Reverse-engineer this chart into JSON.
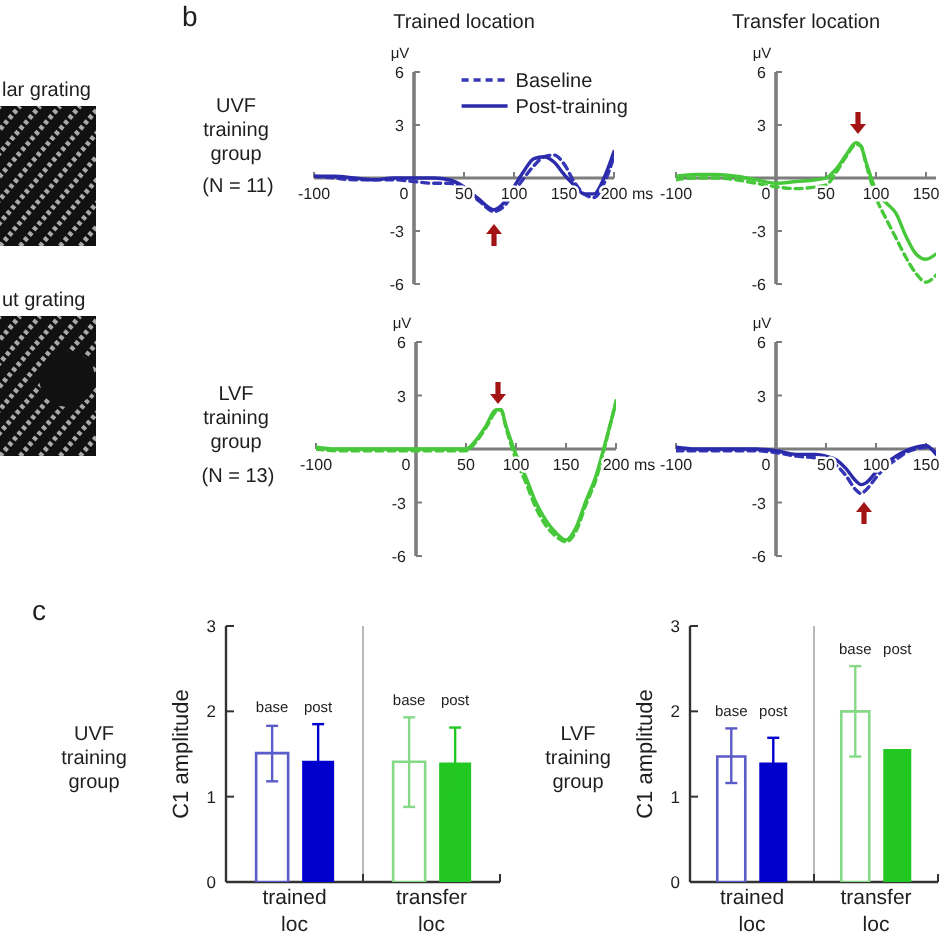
{
  "chart_data": [
    {
      "type": "other",
      "annotations": [
        "lar grating",
        "ut grating"
      ]
    },
    {
      "type": "line",
      "title": "Trained location",
      "xlabel": "ms",
      "ylabel": "μV",
      "annotations": [
        "b",
        "UVF training group",
        "(N = 11)"
      ],
      "legend": "top right",
      "x": [
        -100,
        -80,
        -60,
        -40,
        -20,
        0,
        20,
        35,
        50,
        65,
        80,
        90,
        100,
        110,
        120,
        130,
        140,
        150,
        160,
        170,
        180,
        190,
        200
      ],
      "series": [
        {
          "name": "Baseline",
          "color": "#3535b8",
          "line_style": "dashed",
          "values": [
            0.1,
            0,
            -0.1,
            -0.1,
            -0.1,
            -0.2,
            -0.3,
            -0.3,
            -0.6,
            -1.3,
            -1.9,
            -1.6,
            -0.8,
            0,
            0.7,
            1.2,
            1.3,
            0.8,
            -0.2,
            -0.9,
            -1.1,
            -0.3,
            1.2
          ]
        },
        {
          "name": "Post-training",
          "color": "#2a2aaa",
          "line_style": "solid",
          "values": [
            0.1,
            0.1,
            0,
            -0.1,
            0,
            0,
            0,
            -0.1,
            -0.5,
            -1.2,
            -1.8,
            -1.4,
            -0.5,
            0.4,
            1.1,
            1.2,
            0.9,
            0.2,
            -0.4,
            -0.9,
            -0.9,
            0,
            1.5
          ]
        }
      ],
      "xlim": [
        -100,
        200
      ],
      "xticks": [
        -100,
        0,
        50,
        100,
        150,
        200
      ],
      "ylim": [
        -6,
        6
      ],
      "yticks": [
        -6,
        -3,
        3,
        6
      ]
    },
    {
      "type": "line",
      "title": "Transfer location",
      "ylabel": "μV",
      "x": [
        -100,
        -80,
        -60,
        -40,
        -20,
        0,
        20,
        40,
        50,
        60,
        70,
        80,
        85,
        90,
        100,
        110,
        120,
        130,
        140,
        150,
        160
      ],
      "series": [
        {
          "color": "#46c83a",
          "line_style": "dashed",
          "values": [
            -0.1,
            0,
            0,
            -0.1,
            -0.3,
            -0.5,
            -0.6,
            -0.5,
            -0.4,
            0.3,
            1.2,
            1.9,
            1.8,
            0.8,
            -1.1,
            -2.3,
            -3.4,
            -4.5,
            -5.4,
            -5.9,
            -5.5
          ]
        },
        {
          "color": "#46c83a",
          "line_style": "solid",
          "values": [
            0.1,
            0.2,
            0.2,
            0.1,
            -0.1,
            -0.3,
            -0.2,
            -0.1,
            0,
            0.5,
            1.3,
            2,
            1.8,
            0.9,
            -0.7,
            -1.4,
            -2,
            -3.3,
            -4.3,
            -4.6,
            -4.3
          ]
        }
      ],
      "xlim": [
        -100,
        160
      ],
      "xticks": [
        -100,
        0,
        50,
        100,
        150
      ],
      "ylim": [
        -6,
        6
      ],
      "yticks": [
        -6,
        -3,
        3,
        6
      ]
    },
    {
      "type": "line",
      "xlabel": "ms",
      "ylabel": "μV",
      "annotations": [
        "LVF training group",
        "(N = 13)"
      ],
      "x": [
        -100,
        -80,
        -60,
        -40,
        -20,
        0,
        20,
        40,
        50,
        60,
        70,
        80,
        85,
        90,
        100,
        110,
        120,
        130,
        140,
        150,
        160,
        170,
        180,
        190,
        200
      ],
      "series": [
        {
          "color": "#46c83a",
          "line_style": "dashed",
          "values": [
            0,
            -0.1,
            -0.1,
            -0.1,
            -0.1,
            -0.1,
            -0.1,
            -0.1,
            -0.1,
            0.4,
            1.2,
            2.1,
            2.2,
            1.2,
            -0.6,
            -1.9,
            -3.3,
            -4.3,
            -4.9,
            -5.2,
            -4.6,
            -3.1,
            -1.7,
            0.4,
            2.7
          ]
        },
        {
          "color": "#46c83a",
          "line_style": "solid",
          "values": [
            0.1,
            0,
            0,
            0,
            0,
            0,
            0,
            0,
            0,
            0.5,
            1.3,
            2.2,
            2.2,
            1.3,
            -0.3,
            -1.6,
            -3,
            -4,
            -4.7,
            -5.1,
            -4.4,
            -2.9,
            -1.5,
            0.5,
            2.6
          ]
        }
      ],
      "xlim": [
        -100,
        200
      ],
      "xticks": [
        -100,
        0,
        50,
        100,
        150,
        200
      ],
      "ylim": [
        -6,
        6
      ],
      "yticks": [
        -6,
        -3,
        3,
        6
      ]
    },
    {
      "type": "line",
      "ylabel": "μV",
      "x": [
        -100,
        -80,
        -60,
        -40,
        -20,
        0,
        20,
        40,
        50,
        60,
        70,
        80,
        85,
        90,
        100,
        110,
        120,
        130,
        140,
        150,
        160
      ],
      "series": [
        {
          "color": "#3535b8",
          "line_style": "dashed",
          "values": [
            -0.1,
            -0.1,
            -0.1,
            -0.1,
            -0.1,
            -0.2,
            -0.4,
            -0.5,
            -0.6,
            -0.9,
            -1.5,
            -2.3,
            -2.5,
            -2.3,
            -1.6,
            -1,
            -0.6,
            -0.2,
            0,
            0.1,
            -0.2
          ]
        },
        {
          "color": "#2a2aaa",
          "line_style": "solid",
          "values": [
            0.1,
            0,
            0,
            0,
            0,
            -0.1,
            -0.3,
            -0.3,
            -0.4,
            -0.6,
            -1.1,
            -1.8,
            -2,
            -1.9,
            -1.3,
            -0.8,
            -0.4,
            -0.1,
            0.1,
            0.2,
            -0.3
          ]
        }
      ],
      "xlim": [
        -100,
        160
      ],
      "xticks": [
        -100,
        0,
        50,
        100,
        150
      ],
      "ylim": [
        -6,
        6
      ],
      "yticks": [
        -6,
        -3,
        3,
        6
      ]
    },
    {
      "type": "bar",
      "ylabel": "C1 amplitude",
      "annotations": [
        "c",
        "UVF training group"
      ],
      "grid": "x",
      "categories": [
        "trained loc",
        "transfer loc"
      ],
      "series": [
        {
          "name": "base",
          "colors": [
            "#5b5bc9",
            "#86d986"
          ],
          "values": [
            1.51,
            1.41
          ],
          "errors": [
            [
              1.18,
              1.83
            ],
            [
              0.88,
              1.93
            ]
          ]
        },
        {
          "name": "post",
          "colors": [
            "#0000cc",
            "#22c722"
          ],
          "values": [
            1.42,
            1.4
          ],
          "errors": [
            0.43,
            0.41
          ]
        }
      ],
      "ylim": [
        0,
        3
      ],
      "yticks": [
        0,
        1,
        2,
        3
      ]
    },
    {
      "type": "bar",
      "ylabel": "C1 amplitude",
      "annotations": [
        "LVF training group"
      ],
      "grid": "x",
      "categories": [
        "trained loc",
        "transfer loc"
      ],
      "series": [
        {
          "name": "base",
          "colors": [
            "#5b5bc9",
            "#86d986"
          ],
          "values": [
            1.47,
            2
          ],
          "errors": [
            [
              1.16,
              1.8
            ],
            [
              1.47,
              2.53
            ]
          ]
        },
        {
          "name": "post",
          "colors": [
            "#0000cc",
            "#22c722"
          ],
          "values": [
            1.4,
            1.56
          ],
          "errors": [
            0.29,
            null
          ]
        }
      ],
      "ylim": [
        0,
        3
      ],
      "yticks": [
        0,
        1,
        2,
        3
      ]
    }
  ]
}
